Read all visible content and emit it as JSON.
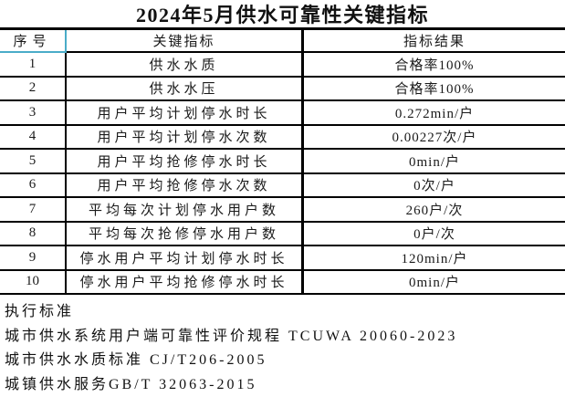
{
  "title": "2024年5月供水可靠性关键指标",
  "table": {
    "columns": [
      "序号",
      "关键指标",
      "指标结果"
    ],
    "rows": [
      {
        "no": "1",
        "indicator": "供水水质",
        "result": "合格率100%"
      },
      {
        "no": "2",
        "indicator": "供水水压",
        "result": "合格率100%"
      },
      {
        "no": "3",
        "indicator": "用户平均计划停水时长",
        "result": "0.272min/户"
      },
      {
        "no": "4",
        "indicator": "用户平均计划停水次数",
        "result": "0.00227次/户"
      },
      {
        "no": "5",
        "indicator": "用户平均抢修停水时长",
        "result": "0min/户"
      },
      {
        "no": "6",
        "indicator": "用户平均抢修停水次数",
        "result": "0次/户"
      },
      {
        "no": "7",
        "indicator": "平均每次计划停水用户数",
        "result": "260户/次"
      },
      {
        "no": "8",
        "indicator": "平均每次抢修停水用户数",
        "result": "0户/次"
      },
      {
        "no": "9",
        "indicator": "停水用户平均计划停水时长",
        "result": "120min/户"
      },
      {
        "no": "10",
        "indicator": "停水用户平均抢修停水时长",
        "result": "0min/户"
      }
    ]
  },
  "footer": {
    "heading": "执行标准",
    "standards": [
      "城市供水系统用户端可靠性评价规程 TCUWA 20060-2023",
      "城市供水水质标准 CJ/T206-2005",
      "城镇供水服务GB/T 32063-2015"
    ]
  },
  "colors": {
    "selection_teal": "#4aacc8",
    "grid_black": "#000000"
  }
}
